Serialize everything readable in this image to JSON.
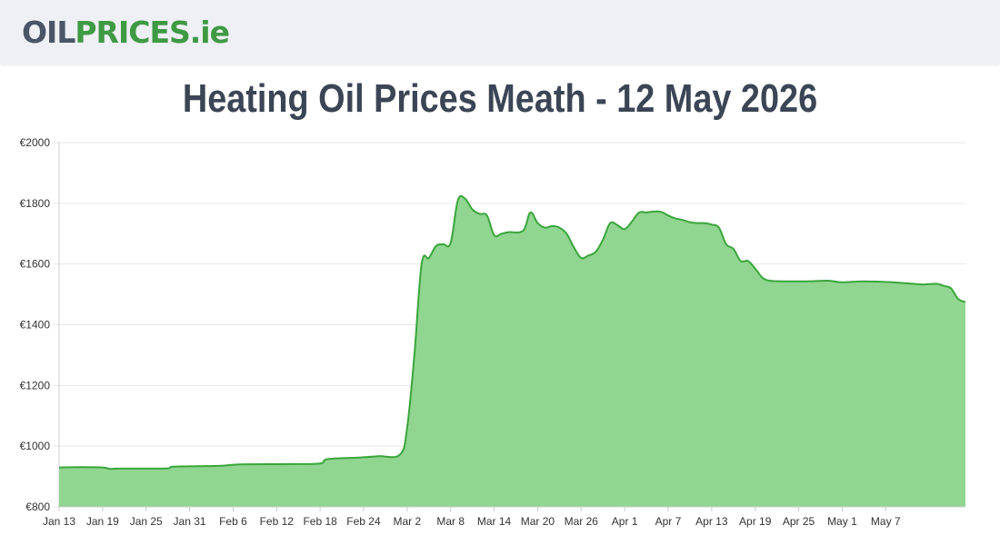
{
  "header": {
    "logo_oil": "OIL",
    "logo_prices": "PRICES",
    "logo_tld": ".ie"
  },
  "page_title": "Heating Oil Prices Meath - 12 May 2026",
  "chart_data": {
    "type": "area",
    "title": "Heating Oil Prices Meath - 12 May 2026",
    "xlabel": "",
    "ylabel": "",
    "ylim": [
      800,
      2000
    ],
    "y_ticks": [
      "€800",
      "€1000",
      "€1200",
      "€1400",
      "€1600",
      "€1800",
      "€2000"
    ],
    "x_ticks": [
      "Jan 13",
      "Jan 19",
      "Jan 25",
      "Jan 31",
      "Feb 6",
      "Feb 12",
      "Feb 18",
      "Feb 24",
      "Mar 2",
      "Mar 8",
      "Mar 14",
      "Mar 20",
      "Mar 26",
      "Apr 1",
      "Apr 7",
      "Apr 13",
      "Apr 19",
      "Apr 25",
      "May 1",
      "May 7"
    ],
    "grid": true,
    "colors": {
      "line": "#3aa63c",
      "fill": "#90d590",
      "grid": "#e6e6e6",
      "axis": "#cccccc"
    },
    "series": [
      {
        "values": [
          [
            0,
            930
          ],
          [
            3,
            931
          ],
          [
            6,
            930
          ],
          [
            7,
            925
          ],
          [
            8,
            926
          ],
          [
            12,
            926
          ],
          [
            15,
            927
          ],
          [
            16,
            933
          ],
          [
            22,
            935
          ],
          [
            25,
            940
          ],
          [
            32,
            941
          ],
          [
            36,
            943
          ],
          [
            37,
            957
          ],
          [
            41,
            962
          ],
          [
            44,
            967
          ],
          [
            47,
            972
          ],
          [
            48,
            1060
          ],
          [
            49,
            1300
          ],
          [
            50,
            1600
          ],
          [
            51,
            1620
          ],
          [
            52,
            1660
          ],
          [
            53,
            1665
          ],
          [
            54,
            1670
          ],
          [
            55,
            1810
          ],
          [
            56,
            1815
          ],
          [
            57,
            1780
          ],
          [
            58,
            1765
          ],
          [
            59,
            1760
          ],
          [
            60,
            1695
          ],
          [
            61,
            1700
          ],
          [
            62,
            1705
          ],
          [
            64,
            1710
          ],
          [
            65,
            1770
          ],
          [
            66,
            1735
          ],
          [
            67,
            1720
          ],
          [
            68,
            1725
          ],
          [
            69,
            1720
          ],
          [
            70,
            1700
          ],
          [
            71,
            1655
          ],
          [
            72,
            1620
          ],
          [
            73,
            1628
          ],
          [
            74,
            1640
          ],
          [
            75,
            1680
          ],
          [
            76,
            1735
          ],
          [
            77,
            1728
          ],
          [
            78,
            1715
          ],
          [
            79,
            1740
          ],
          [
            80,
            1770
          ],
          [
            81,
            1770
          ],
          [
            82,
            1773
          ],
          [
            83,
            1772
          ],
          [
            84,
            1760
          ],
          [
            85,
            1750
          ],
          [
            86,
            1745
          ],
          [
            87,
            1738
          ],
          [
            88,
            1735
          ],
          [
            89,
            1735
          ],
          [
            90,
            1730
          ],
          [
            91,
            1720
          ],
          [
            92,
            1665
          ],
          [
            93,
            1650
          ],
          [
            94,
            1610
          ],
          [
            95,
            1610
          ],
          [
            96,
            1585
          ],
          [
            97,
            1555
          ],
          [
            98,
            1545
          ],
          [
            100,
            1543
          ],
          [
            103,
            1543
          ],
          [
            106,
            1545
          ],
          [
            108,
            1540
          ],
          [
            111,
            1543
          ],
          [
            115,
            1540
          ],
          [
            119,
            1533
          ],
          [
            121,
            1535
          ],
          [
            122,
            1528
          ],
          [
            123,
            1520
          ],
          [
            124,
            1485
          ],
          [
            125,
            1475
          ]
        ]
      }
    ]
  }
}
